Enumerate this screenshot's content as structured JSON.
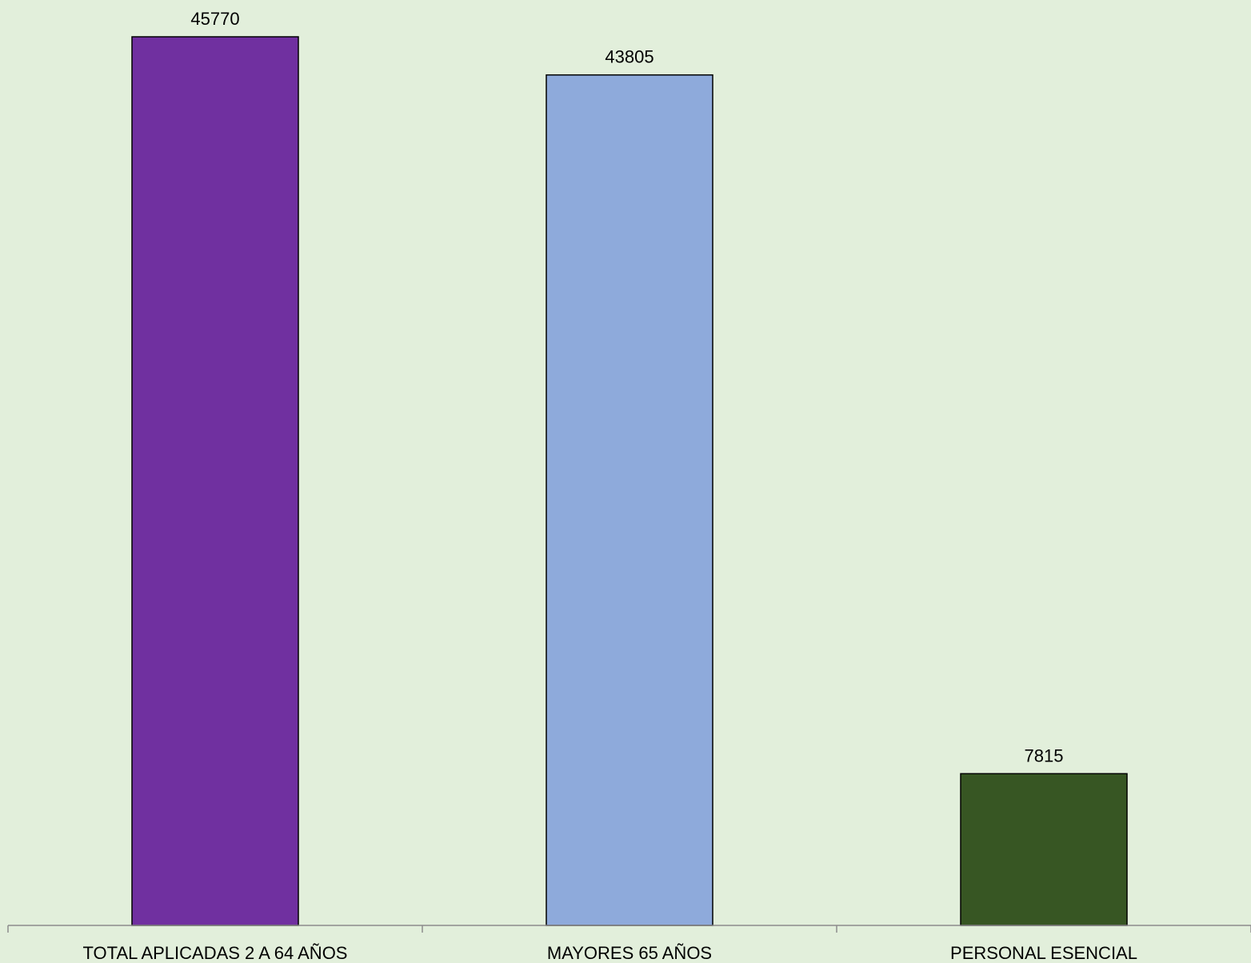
{
  "chart_data": {
    "type": "bar",
    "categories": [
      "TOTAL APLICADAS 2 A 64 AÑOS",
      "MAYORES 65 AÑOS",
      "PERSONAL ESENCIAL"
    ],
    "values": [
      45770,
      43805,
      7815
    ],
    "data_labels": [
      "45770",
      "43805",
      "7815"
    ],
    "bar_colors": [
      "#7030a0",
      "#8eaadb",
      "#375623"
    ],
    "background_color": "#e2efdb",
    "ylim": [
      0,
      45770
    ],
    "grid": false,
    "legend": "none"
  }
}
